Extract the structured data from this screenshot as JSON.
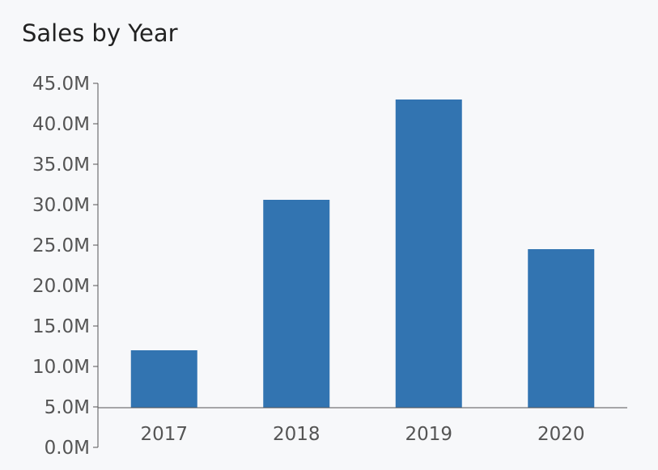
{
  "chart_data": {
    "type": "bar",
    "title": "Sales by Year",
    "xlabel": "",
    "ylabel": "",
    "categories": [
      "2017",
      "2018",
      "2019",
      "2020"
    ],
    "values": [
      12.0,
      30.6,
      43.0,
      24.5
    ],
    "y_unit_suffix": "M",
    "ylim": [
      0,
      45
    ],
    "y_ticks": [
      "0.0M",
      "5.0M",
      "10.0M",
      "15.0M",
      "20.0M",
      "25.0M",
      "30.0M",
      "35.0M",
      "40.0M",
      "45.0M"
    ],
    "bar_color": "#3274b1",
    "grid": false,
    "legend": "none"
  }
}
